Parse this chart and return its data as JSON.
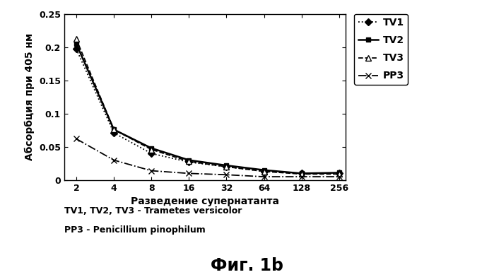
{
  "x": [
    2,
    4,
    8,
    16,
    32,
    64,
    128,
    256
  ],
  "TV1": [
    0.197,
    0.071,
    0.04,
    0.027,
    0.02,
    0.013,
    0.01,
    0.01
  ],
  "TV2": [
    0.205,
    0.076,
    0.048,
    0.03,
    0.022,
    0.015,
    0.01,
    0.011
  ],
  "TV3": [
    0.212,
    0.076,
    0.046,
    0.028,
    0.02,
    0.013,
    0.009,
    0.009
  ],
  "PP3": [
    0.062,
    0.03,
    0.014,
    0.01,
    0.008,
    0.005,
    0.005,
    0.005
  ],
  "xlabel": "Разведение супернатанта",
  "ylabel": "Абсорбция при 405 нм",
  "caption_line1": "TV1, TV2, TV3 - Trametes versicolor",
  "caption_line2": "PP3 - Penicillium pinophilum",
  "fig_label": "Фиг. 1b",
  "ytick_labels": [
    "0",
    "0.05",
    "0.1",
    "0.15",
    "0.2",
    "0.25"
  ],
  "yticks": [
    0,
    0.05,
    0.1,
    0.15,
    0.2,
    0.25
  ],
  "ylim": [
    0,
    0.25
  ],
  "background_color": "#ffffff",
  "line_color": "#000000"
}
